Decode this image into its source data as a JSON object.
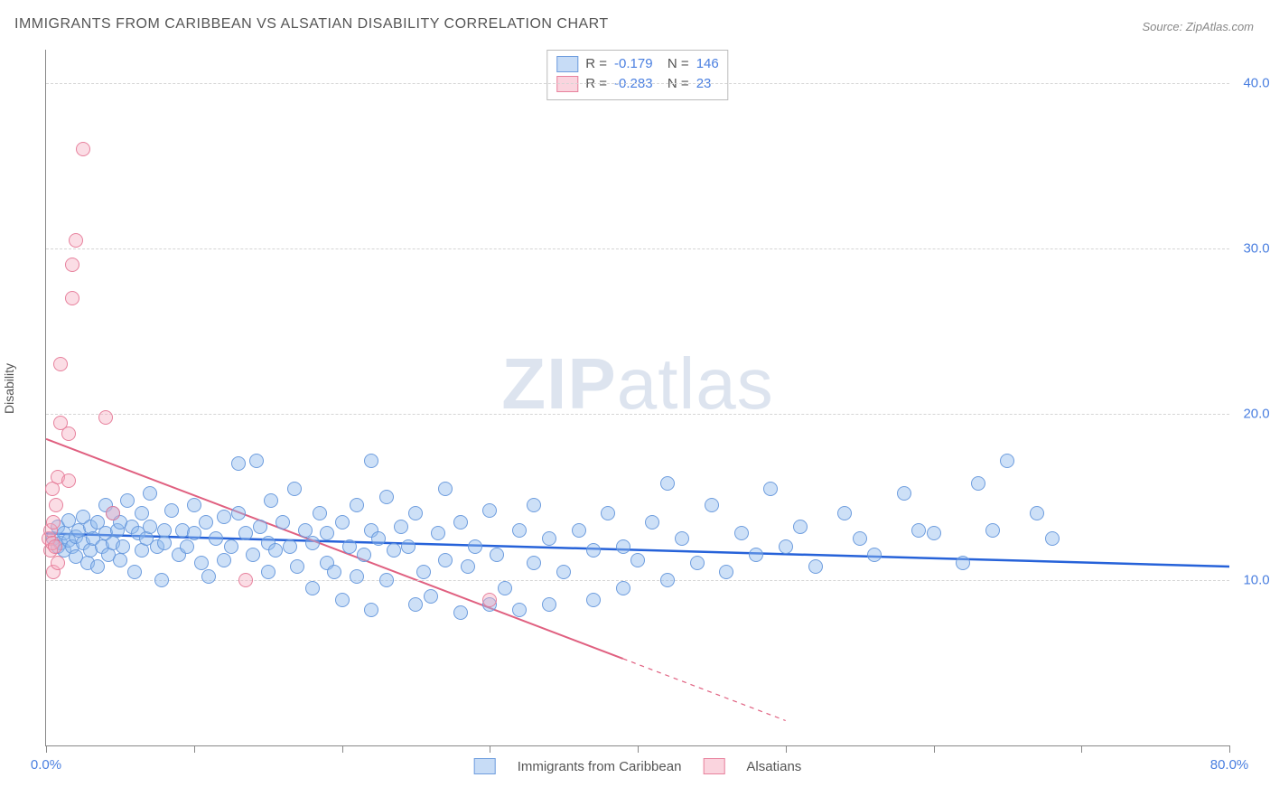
{
  "title": "IMMIGRANTS FROM CARIBBEAN VS ALSATIAN DISABILITY CORRELATION CHART",
  "source": "Source: ZipAtlas.com",
  "ylabel": "Disability",
  "watermark_bold": "ZIP",
  "watermark_light": "atlas",
  "chart": {
    "type": "scatter",
    "xlim": [
      0,
      80
    ],
    "ylim": [
      0,
      42
    ],
    "x_ticks": [
      0,
      10,
      20,
      30,
      40,
      50,
      60,
      70,
      80
    ],
    "x_tick_labels": {
      "0": "0.0%",
      "80": "80.0%"
    },
    "y_ticks": [
      10,
      20,
      30,
      40
    ],
    "y_tick_labels": [
      "10.0%",
      "20.0%",
      "30.0%",
      "40.0%"
    ],
    "grid_color": "#d5d5d5",
    "axis_color": "#888888",
    "background_color": "#ffffff",
    "series": [
      {
        "name": "Immigrants from Caribbean",
        "color_fill": "rgba(144,186,237,0.45)",
        "color_stroke": "rgba(100,150,220,0.9)",
        "marker_radius": 7,
        "R": "-0.179",
        "N": "146",
        "trend": {
          "x1": 0,
          "y1": 12.8,
          "x2": 80,
          "y2": 10.8,
          "color": "#2662d9",
          "width": 2.5
        },
        "points": [
          [
            0.5,
            12.5
          ],
          [
            0.8,
            12.0
          ],
          [
            0.8,
            13.2
          ],
          [
            1.0,
            12.2
          ],
          [
            1.2,
            11.8
          ],
          [
            1.2,
            12.8
          ],
          [
            1.5,
            12.4
          ],
          [
            1.5,
            13.6
          ],
          [
            1.8,
            12.0
          ],
          [
            2.0,
            12.6
          ],
          [
            2.0,
            11.4
          ],
          [
            2.2,
            13.0
          ],
          [
            2.5,
            12.2
          ],
          [
            2.5,
            13.8
          ],
          [
            2.8,
            11.0
          ],
          [
            3.0,
            13.2
          ],
          [
            3.0,
            11.8
          ],
          [
            3.2,
            12.5
          ],
          [
            3.5,
            13.5
          ],
          [
            3.5,
            10.8
          ],
          [
            3.8,
            12.0
          ],
          [
            4.0,
            12.8
          ],
          [
            4.0,
            14.5
          ],
          [
            4.2,
            11.5
          ],
          [
            4.5,
            14.0
          ],
          [
            4.5,
            12.2
          ],
          [
            4.8,
            13.0
          ],
          [
            5.0,
            13.5
          ],
          [
            5.0,
            11.2
          ],
          [
            5.2,
            12.0
          ],
          [
            5.5,
            14.8
          ],
          [
            5.8,
            13.2
          ],
          [
            6.0,
            10.5
          ],
          [
            6.2,
            12.8
          ],
          [
            6.5,
            14.0
          ],
          [
            6.5,
            11.8
          ],
          [
            6.8,
            12.5
          ],
          [
            7.0,
            13.2
          ],
          [
            7.0,
            15.2
          ],
          [
            7.5,
            12.0
          ],
          [
            7.8,
            10.0
          ],
          [
            8.0,
            13.0
          ],
          [
            8.0,
            12.2
          ],
          [
            8.5,
            14.2
          ],
          [
            9.0,
            11.5
          ],
          [
            9.2,
            13.0
          ],
          [
            9.5,
            12.0
          ],
          [
            10.0,
            12.8
          ],
          [
            10.0,
            14.5
          ],
          [
            10.5,
            11.0
          ],
          [
            10.8,
            13.5
          ],
          [
            11.0,
            10.2
          ],
          [
            11.5,
            12.5
          ],
          [
            12.0,
            13.8
          ],
          [
            12.0,
            11.2
          ],
          [
            12.5,
            12.0
          ],
          [
            13.0,
            14.0
          ],
          [
            13.0,
            17.0
          ],
          [
            13.5,
            12.8
          ],
          [
            14.0,
            11.5
          ],
          [
            14.2,
            17.2
          ],
          [
            14.5,
            13.2
          ],
          [
            15.0,
            10.5
          ],
          [
            15.0,
            12.2
          ],
          [
            15.2,
            14.8
          ],
          [
            15.5,
            11.8
          ],
          [
            16.0,
            13.5
          ],
          [
            16.5,
            12.0
          ],
          [
            16.8,
            15.5
          ],
          [
            17.0,
            10.8
          ],
          [
            17.5,
            13.0
          ],
          [
            18.0,
            12.2
          ],
          [
            18.0,
            9.5
          ],
          [
            18.5,
            14.0
          ],
          [
            19.0,
            11.0
          ],
          [
            19.0,
            12.8
          ],
          [
            19.5,
            10.5
          ],
          [
            20.0,
            13.5
          ],
          [
            20.0,
            8.8
          ],
          [
            20.5,
            12.0
          ],
          [
            21.0,
            14.5
          ],
          [
            21.0,
            10.2
          ],
          [
            21.5,
            11.5
          ],
          [
            22.0,
            13.0
          ],
          [
            22.0,
            17.2
          ],
          [
            22.0,
            8.2
          ],
          [
            22.5,
            12.5
          ],
          [
            23.0,
            10.0
          ],
          [
            23.0,
            15.0
          ],
          [
            23.5,
            11.8
          ],
          [
            24.0,
            13.2
          ],
          [
            24.5,
            12.0
          ],
          [
            25.0,
            8.5
          ],
          [
            25.0,
            14.0
          ],
          [
            25.5,
            10.5
          ],
          [
            26.0,
            9.0
          ],
          [
            26.5,
            12.8
          ],
          [
            27.0,
            11.2
          ],
          [
            27.0,
            15.5
          ],
          [
            28.0,
            13.5
          ],
          [
            28.0,
            8.0
          ],
          [
            28.5,
            10.8
          ],
          [
            29.0,
            12.0
          ],
          [
            30.0,
            8.5
          ],
          [
            30.0,
            14.2
          ],
          [
            30.5,
            11.5
          ],
          [
            31.0,
            9.5
          ],
          [
            32.0,
            13.0
          ],
          [
            32.0,
            8.2
          ],
          [
            33.0,
            11.0
          ],
          [
            33.0,
            14.5
          ],
          [
            34.0,
            12.5
          ],
          [
            34.0,
            8.5
          ],
          [
            35.0,
            10.5
          ],
          [
            36.0,
            13.0
          ],
          [
            37.0,
            8.8
          ],
          [
            37.0,
            11.8
          ],
          [
            38.0,
            14.0
          ],
          [
            39.0,
            9.5
          ],
          [
            39.0,
            12.0
          ],
          [
            40.0,
            11.2
          ],
          [
            41.0,
            13.5
          ],
          [
            42.0,
            10.0
          ],
          [
            42.0,
            15.8
          ],
          [
            43.0,
            12.5
          ],
          [
            44.0,
            11.0
          ],
          [
            45.0,
            14.5
          ],
          [
            46.0,
            10.5
          ],
          [
            47.0,
            12.8
          ],
          [
            48.0,
            11.5
          ],
          [
            49.0,
            15.5
          ],
          [
            50.0,
            12.0
          ],
          [
            51.0,
            13.2
          ],
          [
            52.0,
            10.8
          ],
          [
            54.0,
            14.0
          ],
          [
            55.0,
            12.5
          ],
          [
            56.0,
            11.5
          ],
          [
            58.0,
            15.2
          ],
          [
            59.0,
            13.0
          ],
          [
            60.0,
            12.8
          ],
          [
            62.0,
            11.0
          ],
          [
            63.0,
            15.8
          ],
          [
            64.0,
            13.0
          ],
          [
            65.0,
            17.2
          ],
          [
            67.0,
            14.0
          ],
          [
            68.0,
            12.5
          ]
        ]
      },
      {
        "name": "Alsatians",
        "color_fill": "rgba(245,170,190,0.4)",
        "color_stroke": "rgba(230,120,150,0.9)",
        "marker_radius": 7,
        "R": "-0.283",
        "N": "23",
        "trend": {
          "x1": 0,
          "y1": 18.5,
          "x2": 50,
          "y2": 1.5,
          "solid_until_x": 39,
          "color": "#e06080",
          "width": 2
        },
        "points": [
          [
            0.2,
            12.5
          ],
          [
            0.3,
            13.0
          ],
          [
            0.3,
            11.8
          ],
          [
            0.4,
            15.5
          ],
          [
            0.4,
            12.2
          ],
          [
            0.5,
            13.5
          ],
          [
            0.5,
            10.5
          ],
          [
            0.6,
            12.0
          ],
          [
            0.7,
            14.5
          ],
          [
            0.8,
            11.0
          ],
          [
            0.8,
            16.2
          ],
          [
            1.0,
            19.5
          ],
          [
            1.0,
            23.0
          ],
          [
            1.5,
            18.8
          ],
          [
            1.5,
            16.0
          ],
          [
            1.8,
            29.0
          ],
          [
            1.8,
            27.0
          ],
          [
            2.0,
            30.5
          ],
          [
            2.5,
            36.0
          ],
          [
            4.0,
            19.8
          ],
          [
            4.5,
            14.0
          ],
          [
            13.5,
            10.0
          ],
          [
            30.0,
            8.8
          ]
        ]
      }
    ],
    "bottom_legend": [
      {
        "swatch": "blue",
        "label": "Immigrants from Caribbean"
      },
      {
        "swatch": "pink",
        "label": "Alsatians"
      }
    ]
  }
}
